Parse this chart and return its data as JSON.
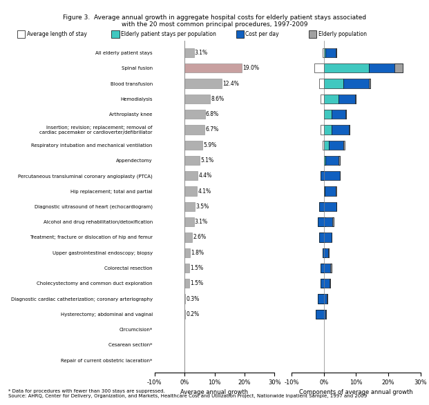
{
  "title": "Figure 3.  Average annual growth in aggregate hospital costs for elderly patient stays associated\nwith the 20 most common principal procedures, 1997-2009",
  "procedures": [
    "All elderly patient stays",
    "Spinal fusion",
    "Blood transfusion",
    "Hemodialysis",
    "Arthroplasty knee",
    "Insertion; revision; replacement; removal of\ncardiac pacemaker or cardioverter/defibrillator",
    "Respiratory intubation and mechanical ventilation",
    "Appendectomy",
    "Percutaneous transluminal coronary angioplasty (PTCA)",
    "Hip replacement; total and partial",
    "Diagnostic ultrasound of heart (echocardiogram)",
    "Alcohol and drug rehabilitation/detoxification",
    "Treatment; fracture or dislocation of hip and femur",
    "Upper gastrointestinal endoscopy; biopsy",
    "Colorectal resection",
    "Cholecystectomy and common duct exploration",
    "Diagnostic cardiac catheterization; coronary arteriography",
    "Hysterectomy; abdominal and vaginal",
    "Circumcision*",
    "Cesarean section*",
    "Repair of current obstetric laceration*"
  ],
  "avg_growth": [
    3.1,
    19.0,
    12.4,
    8.6,
    6.8,
    6.7,
    5.9,
    5.1,
    4.4,
    4.1,
    3.5,
    3.1,
    2.6,
    1.8,
    1.5,
    1.5,
    0.3,
    0.2,
    null,
    null,
    null
  ],
  "components": [
    {
      "los": -0.5,
      "pop": 0.5,
      "cpd": 3.5,
      "elderly": -0.4
    },
    {
      "los": -3.0,
      "pop": 14.0,
      "cpd": 10.5,
      "elderly": -2.5
    },
    {
      "los": -1.5,
      "pop": 6.0,
      "cpd": 8.5,
      "elderly": -0.6
    },
    {
      "los": -1.0,
      "pop": 4.5,
      "cpd": 5.5,
      "elderly": -0.4
    },
    {
      "los": 0.2,
      "pop": 2.5,
      "cpd": 4.5,
      "elderly": -0.4
    },
    {
      "los": -1.0,
      "pop": 2.5,
      "cpd": 5.5,
      "elderly": -0.3
    },
    {
      "los": -0.5,
      "pop": 1.5,
      "cpd": 4.5,
      "elderly": 0.4
    },
    {
      "los": 0.5,
      "pop": 0.5,
      "cpd": 4.5,
      "elderly": -0.4
    },
    {
      "los": -0.5,
      "pop": -1.0,
      "cpd": 6.0,
      "elderly": 0.0
    },
    {
      "los": 0.2,
      "pop": 0.2,
      "cpd": 3.5,
      "elderly": 0.2
    },
    {
      "los": -0.5,
      "pop": -1.5,
      "cpd": 5.5,
      "elderly": 0.0
    },
    {
      "los": 0.5,
      "pop": -2.0,
      "cpd": 5.0,
      "elderly": -0.4
    },
    {
      "los": 0.2,
      "pop": -1.5,
      "cpd": 4.0,
      "elderly": -0.1
    },
    {
      "los": 0.5,
      "pop": -0.5,
      "cpd": 2.0,
      "elderly": -0.2
    },
    {
      "los": -0.5,
      "pop": -1.0,
      "cpd": 3.5,
      "elderly": -0.5
    },
    {
      "los": -0.3,
      "pop": -1.0,
      "cpd": 3.0,
      "elderly": -0.2
    },
    {
      "los": -0.5,
      "pop": -2.0,
      "cpd": 3.0,
      "elderly": -0.2
    },
    {
      "los": -0.3,
      "pop": -2.5,
      "cpd": 3.2,
      "elderly": -0.2
    },
    {
      "los": null,
      "pop": null,
      "cpd": null,
      "elderly": null
    },
    {
      "los": null,
      "pop": null,
      "cpd": null,
      "elderly": null
    },
    {
      "los": null,
      "pop": null,
      "cpd": null,
      "elderly": null
    }
  ],
  "legend_labels": [
    "Average length of stay",
    "Elderly patient stays per population",
    "Cost per day",
    "Elderly population"
  ],
  "colors": {
    "avg_bar": "#b0b0b0",
    "spinal_bar": "#c8a0a0",
    "los": "#ffffff",
    "pop": "#40c8c0",
    "cpd": "#1060c0",
    "elderly": "#a0a0a0"
  },
  "left_xlim": [
    -10,
    30
  ],
  "right_xlim": [
    -10,
    30
  ],
  "left_xticks": [
    -10,
    0,
    10,
    20,
    30
  ],
  "right_xticks": [
    -10,
    0,
    10,
    20,
    30
  ],
  "xlabel_left": "Average annual growth",
  "xlabel_right": "Components of average annual growth",
  "footnote": "* Data for procedures with fewer than 300 stays are suppressed.\nSource: AHRQ, Center for Delivery, Organization, and Markets, Healthcare Cost and Utilization Project, Nationwide Inpatient Sample, 1997 and 2009"
}
